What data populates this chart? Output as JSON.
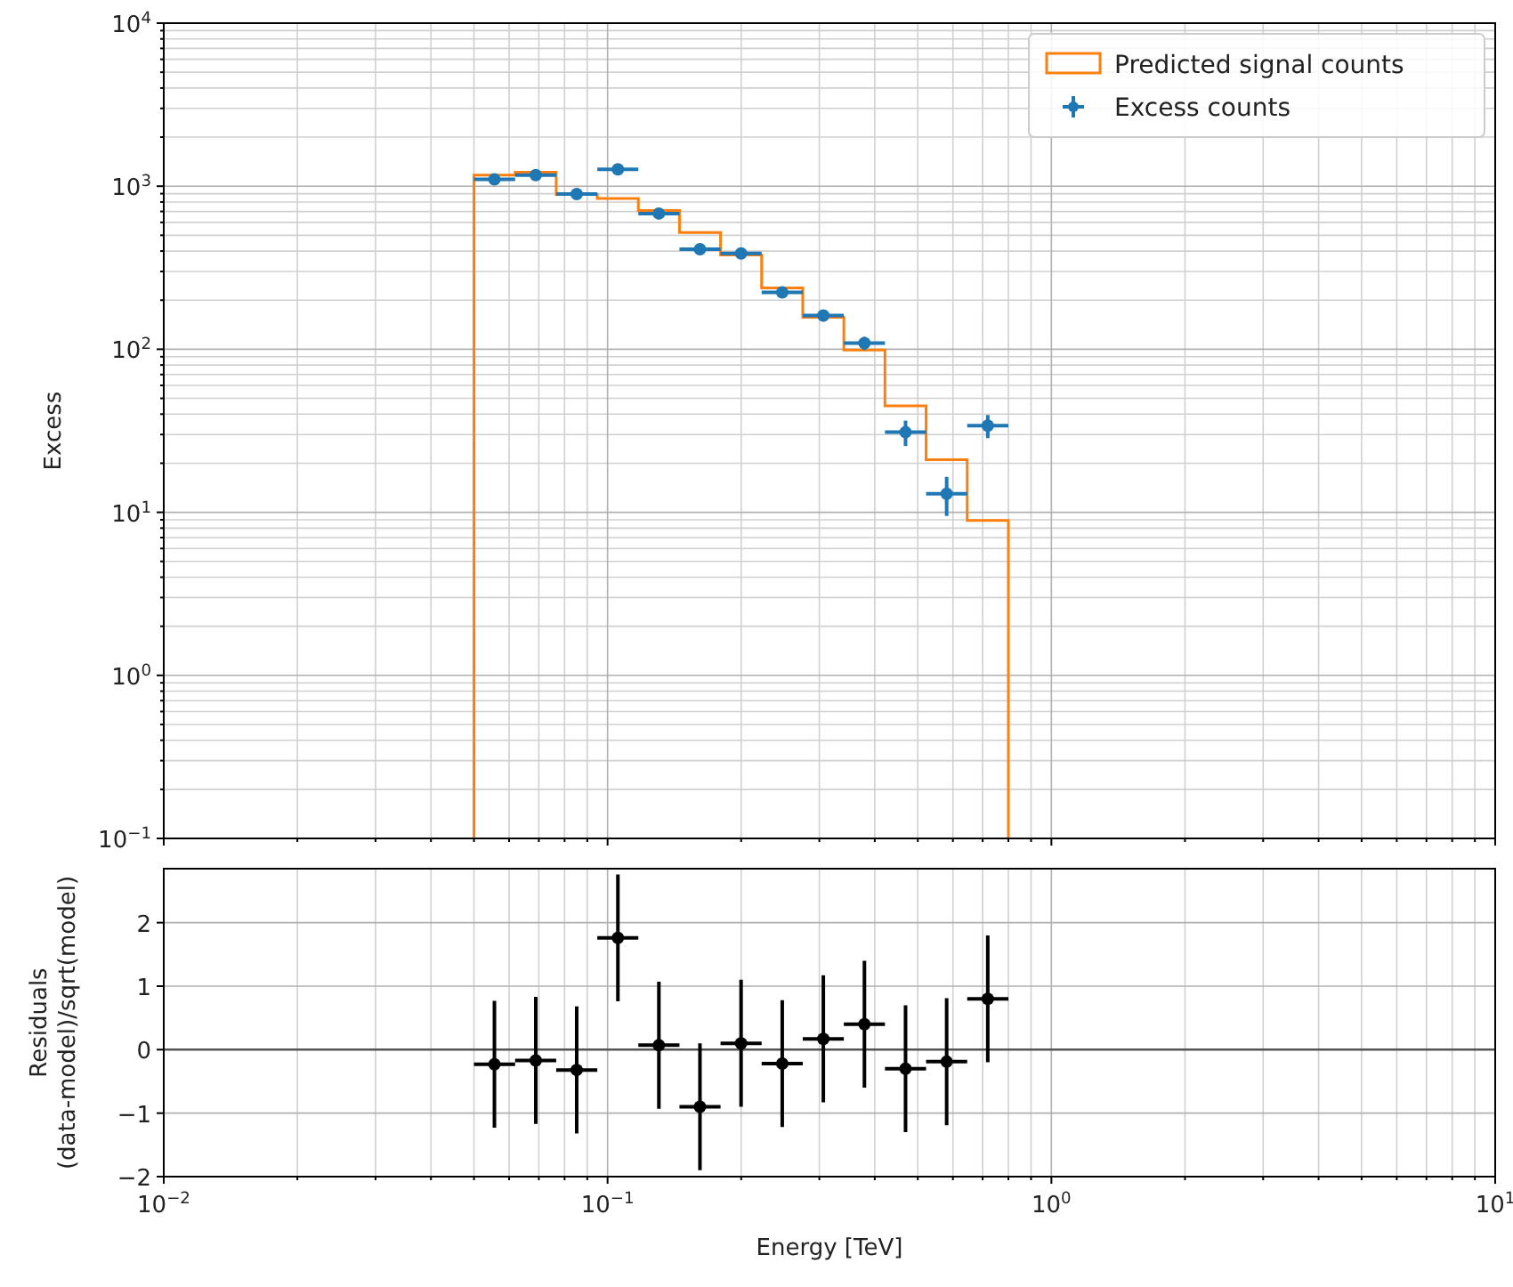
{
  "chart_data": [
    {
      "type": "scatter",
      "ylabel": "Excess",
      "log": "xy",
      "xlim": [
        0.01,
        10
      ],
      "ylim": [
        0.1,
        10000
      ],
      "xticks": [
        0.01,
        0.1,
        1,
        10
      ],
      "yticks": [
        {
          "value": 0.1,
          "label": "10$^{−1}$"
        },
        {
          "value": 1,
          "label": "10$^{0}$"
        },
        {
          "value": 10,
          "label": "10$^{1}$"
        },
        {
          "value": 100,
          "label": "10$^{2}$"
        },
        {
          "value": 1000,
          "label": "10$^{3}$"
        },
        {
          "value": 10000,
          "label": "10$^{4}$"
        }
      ],
      "grid": true,
      "legend": "top right",
      "tick_labels": "y",
      "series": [
        {
          "type": "histogram",
          "name": "Predicted signal counts",
          "color": "#ff7f0e",
          "bins": [
            0.05,
            0.0619,
            0.0766,
            0.0948,
            0.1173,
            0.1452,
            0.1797,
            0.2224,
            0.2753,
            0.3407,
            0.4217,
            0.522,
            0.6461,
            0.8
          ],
          "values": [
            1170,
            1220,
            890,
            840,
            710,
            520,
            378,
            238,
            157,
            99,
            45,
            21,
            8.9
          ]
        },
        {
          "type": "scatter",
          "name": "Excess counts",
          "color": "#1f77b4",
          "marker": "circle",
          "x": [
            0.0556,
            0.0689,
            0.0852,
            0.1055,
            0.1305,
            0.1615,
            0.1999,
            0.2475,
            0.3063,
            0.3791,
            0.4692,
            0.5808,
            0.7189
          ],
          "values": [
            1100,
            1170,
            895,
            1270,
            680,
            411,
            387,
            223,
            161,
            109,
            31,
            13,
            34
          ],
          "errors": [
            33,
            34,
            30,
            36,
            26,
            20,
            20,
            15,
            13,
            10,
            5.5,
            3.5,
            5.5
          ],
          "xerrors": [
            [
              0.05,
              0.0619
            ],
            [
              0.0619,
              0.0766
            ],
            [
              0.0766,
              0.0948
            ],
            [
              0.0948,
              0.1173
            ],
            [
              0.1173,
              0.1452
            ],
            [
              0.1452,
              0.1797
            ],
            [
              0.1797,
              0.2224
            ],
            [
              0.2224,
              0.2753
            ],
            [
              0.2753,
              0.3407
            ],
            [
              0.3407,
              0.4217
            ],
            [
              0.4217,
              0.522
            ],
            [
              0.522,
              0.6461
            ],
            [
              0.6461,
              0.8
            ]
          ]
        }
      ]
    },
    {
      "type": "scatter",
      "xlabel": "Energy [TeV]",
      "ylabel": "Residuals\n(data-model)/sqrt(model)",
      "log": "x",
      "xlim": [
        0.01,
        10
      ],
      "ylim": [
        -2,
        2.85
      ],
      "xticks": [
        {
          "value": 0.01,
          "label": "10$^{−2}$"
        },
        {
          "value": 0.1,
          "label": "10$^{−1}$"
        },
        {
          "value": 1,
          "label": "10$^{0}$"
        },
        {
          "value": 10,
          "label": "10$^{1}$"
        }
      ],
      "yticks": [
        {
          "value": -2,
          "label": "−2"
        },
        {
          "value": -1,
          "label": "−1"
        },
        0,
        1,
        2
      ],
      "grid": true,
      "ref_lines": [
        {
          "axis": "y",
          "value": 0,
          "color": "#555555"
        }
      ],
      "series": [
        {
          "type": "scatter",
          "color": "#000000",
          "marker": "circle",
          "x": [
            0.0556,
            0.0689,
            0.0852,
            0.1055,
            0.1305,
            0.1615,
            0.1999,
            0.2475,
            0.3063,
            0.3791,
            0.4692,
            0.5808,
            0.7189
          ],
          "values": [
            -0.23,
            -0.17,
            -0.32,
            1.76,
            0.07,
            -0.9,
            0.1,
            -0.22,
            0.17,
            0.4,
            -0.3,
            -0.19,
            0.8
          ],
          "errors": [
            1,
            1,
            1,
            1,
            1,
            1,
            1,
            1,
            1,
            1,
            1,
            1,
            1
          ],
          "xerrors": [
            [
              0.05,
              0.0619
            ],
            [
              0.0619,
              0.0766
            ],
            [
              0.0766,
              0.0948
            ],
            [
              0.0948,
              0.1173
            ],
            [
              0.1173,
              0.1452
            ],
            [
              0.1452,
              0.1797
            ],
            [
              0.1797,
              0.2224
            ],
            [
              0.2224,
              0.2753
            ],
            [
              0.2753,
              0.3407
            ],
            [
              0.3407,
              0.4217
            ],
            [
              0.4217,
              0.522
            ],
            [
              0.522,
              0.6461
            ],
            [
              0.6461,
              0.8
            ]
          ]
        }
      ]
    }
  ]
}
